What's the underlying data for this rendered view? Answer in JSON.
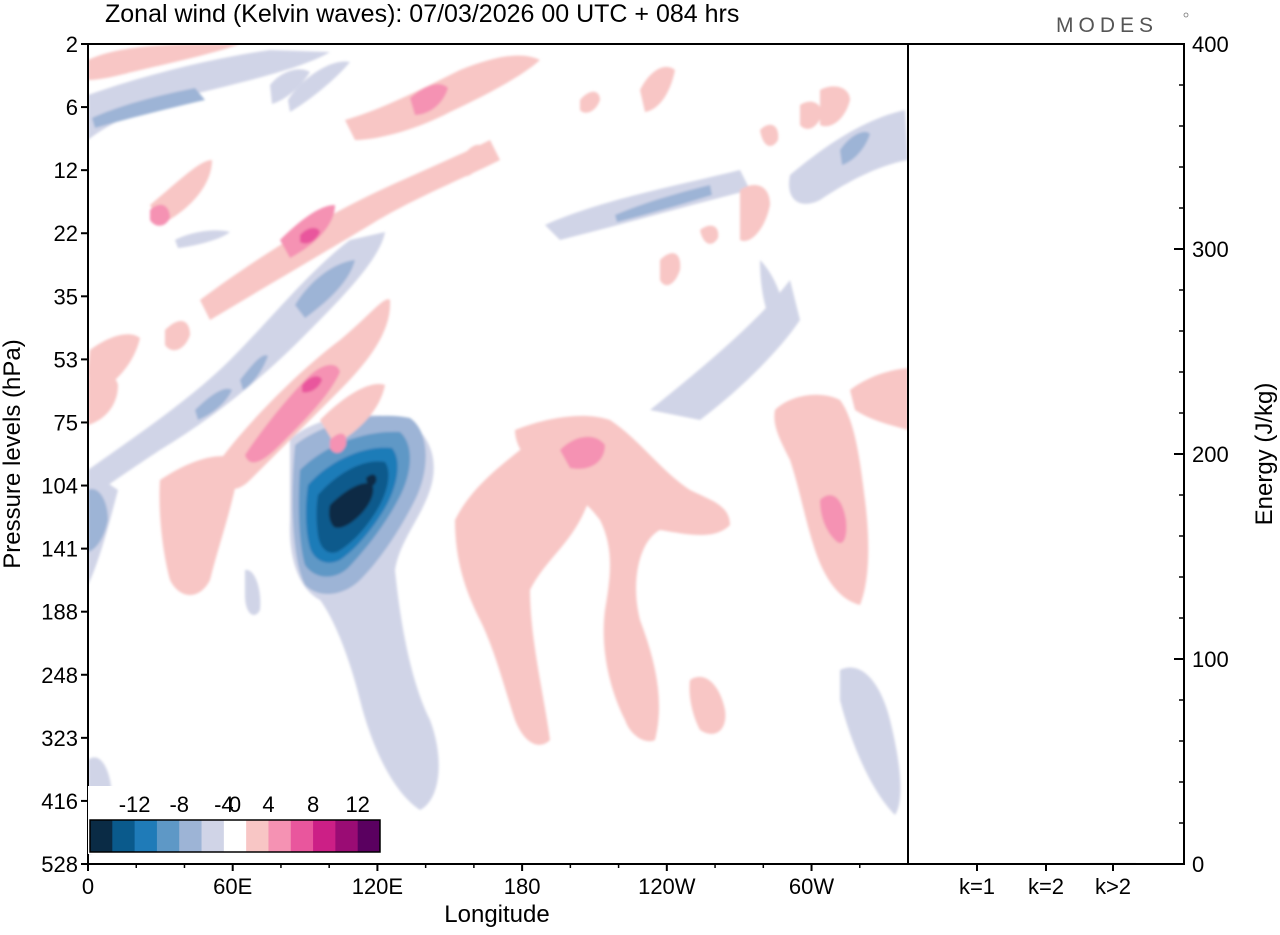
{
  "header": {
    "title": "Zonal wind (Kelvin waves):  07/03/2026  00 UTC  + 084 hrs",
    "brand": "MODES"
  },
  "chart_data": [
    {
      "type": "heatmap",
      "title": "Zonal wind (Kelvin waves):  07/03/2026  00 UTC  + 084 hrs",
      "xlabel": "Longitude",
      "ylabel": "Pressure levels (hPa)",
      "x_ticks": [
        "0",
        "60E",
        "120E",
        "180",
        "120W",
        "60W"
      ],
      "x_tick_values": [
        0,
        60,
        120,
        180,
        240,
        300
      ],
      "xlim": [
        0,
        340
      ],
      "y_ticks": [
        "2",
        "6",
        "12",
        "22",
        "35",
        "53",
        "75",
        "104",
        "141",
        "188",
        "248",
        "323",
        "416",
        "528"
      ],
      "colorbar": {
        "tick_labels": [
          "-12",
          "-8",
          "-4",
          "0",
          "4",
          "8",
          "12"
        ],
        "levels": [
          -14,
          -12,
          -10,
          -8,
          -6,
          -4,
          -2,
          2,
          4,
          6,
          8,
          10,
          12,
          14
        ],
        "colors": [
          "#0a2b45",
          "#0a5a8c",
          "#1f7bb8",
          "#5e98c6",
          "#9db4d6",
          "#d0d4e7",
          "#ffffff",
          "#f8c6c5",
          "#f592b3",
          "#e9569d",
          "#cc1f86",
          "#9a0c74",
          "#5a0060"
        ]
      },
      "features": [
        {
          "kind": "negative",
          "lon": 125,
          "level": "104",
          "peak": -14
        },
        {
          "kind": "negative",
          "lon": 95,
          "level": "35",
          "peak": -6
        },
        {
          "kind": "negative",
          "lon": 320,
          "level": "12",
          "peak": -6
        },
        {
          "kind": "positive",
          "lon": 95,
          "level": "22",
          "peak": 8
        },
        {
          "kind": "positive",
          "lon": 95,
          "level": "53",
          "peak": 8
        },
        {
          "kind": "positive",
          "lon": 210,
          "level": "75",
          "peak": 6
        },
        {
          "kind": "positive",
          "lon": 310,
          "level": "104",
          "peak": 6
        }
      ]
    },
    {
      "type": "bar",
      "ylabel": "Energy (J/kg)",
      "categories": [
        "k=1",
        "k=2",
        "k>2"
      ],
      "values": [
        0.3,
        0.3,
        0.5
      ],
      "ylim": [
        0,
        400
      ],
      "y_ticks": [
        "0",
        "100",
        "200",
        "300",
        "400"
      ],
      "y_tick_values": [
        0,
        100,
        200,
        300,
        400
      ]
    }
  ]
}
